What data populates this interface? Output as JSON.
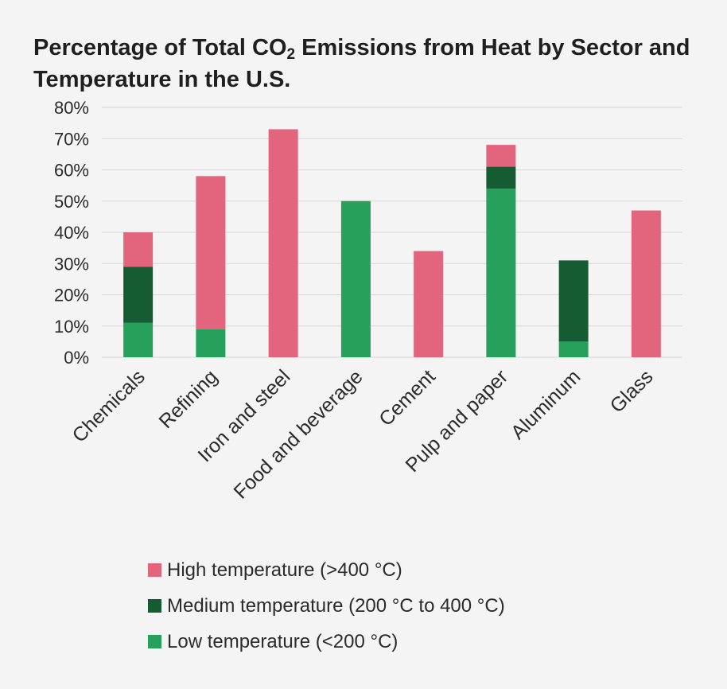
{
  "chart_data": {
    "type": "bar",
    "stacked": true,
    "title_main": "Percentage of Total CO",
    "title_sub": "2",
    "title_rest": " Emissions from Heat by Sector and Temperature in the U.S.",
    "xlabel": "",
    "ylabel": "",
    "ylim": [
      0,
      80
    ],
    "yticks": [
      0,
      10,
      20,
      30,
      40,
      50,
      60,
      70,
      80
    ],
    "ytick_labels": [
      "0%",
      "10%",
      "20%",
      "30%",
      "40%",
      "50%",
      "60%",
      "70%",
      "80%"
    ],
    "grid": true,
    "legend_position": "bottom",
    "categories": [
      "Chemicals",
      "Refining",
      "Iron and steel",
      "Food and beverage",
      "Cement",
      "Pulp and paper",
      "Aluminum",
      "Glass"
    ],
    "series": [
      {
        "name": "Low temperature (<200 °C)",
        "color": "#26a05a",
        "values": [
          11,
          9,
          0,
          50,
          0,
          54,
          5,
          0
        ]
      },
      {
        "name": "Medium temperature (200 °C to 400 °C)",
        "color": "#165c33",
        "values": [
          18,
          0,
          0,
          0,
          0,
          7,
          26,
          0
        ]
      },
      {
        "name": "High temperature (>400 °C)",
        "color": "#e2657d",
        "values": [
          11,
          49,
          73,
          0,
          34,
          7,
          0,
          47
        ]
      }
    ]
  },
  "legend": [
    {
      "label": "High temperature (>400 °C)",
      "color": "#e2657d"
    },
    {
      "label": "Medium temperature (200 °C to 400 °C)",
      "color": "#165c33"
    },
    {
      "label": "Low temperature (<200 °C)",
      "color": "#26a05a"
    }
  ]
}
